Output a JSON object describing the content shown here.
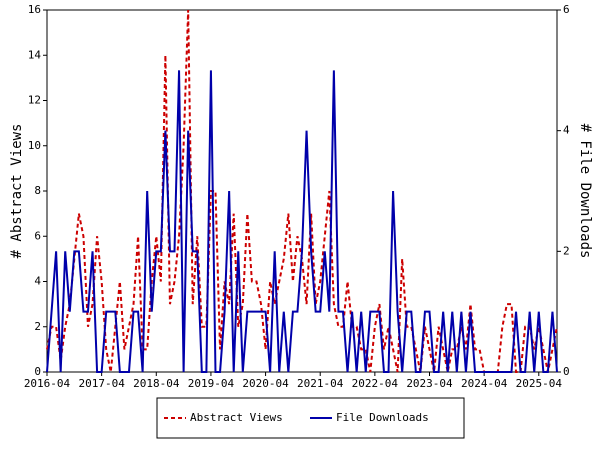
{
  "chart_data": {
    "type": "line",
    "x": [
      "2016-04",
      "2016-05",
      "2016-06",
      "2016-07",
      "2016-08",
      "2016-09",
      "2016-10",
      "2016-11",
      "2016-12",
      "2017-01",
      "2017-02",
      "2017-03",
      "2017-04",
      "2017-05",
      "2017-06",
      "2017-07",
      "2017-08",
      "2017-09",
      "2017-10",
      "2017-11",
      "2017-12",
      "2018-01",
      "2018-02",
      "2018-03",
      "2018-04",
      "2018-05",
      "2018-06",
      "2018-07",
      "2018-08",
      "2018-09",
      "2018-10",
      "2018-11",
      "2018-12",
      "2019-01",
      "2019-02",
      "2019-03",
      "2019-04",
      "2019-05",
      "2019-06",
      "2019-07",
      "2019-08",
      "2019-09",
      "2019-10",
      "2019-11",
      "2019-12",
      "2020-01",
      "2020-02",
      "2020-03",
      "2020-04",
      "2020-05",
      "2020-06",
      "2020-07",
      "2020-08",
      "2020-09",
      "2020-10",
      "2020-11",
      "2020-12",
      "2021-01",
      "2021-02",
      "2021-03",
      "2021-04",
      "2021-05",
      "2021-06",
      "2021-07",
      "2021-08",
      "2021-09",
      "2021-10",
      "2021-11",
      "2021-12",
      "2022-01",
      "2022-02",
      "2022-03",
      "2022-04",
      "2022-05",
      "2022-06",
      "2022-07",
      "2022-08",
      "2022-09",
      "2022-10",
      "2022-11",
      "2022-12",
      "2023-01",
      "2023-02",
      "2023-03",
      "2023-04",
      "2023-05",
      "2023-06",
      "2023-07",
      "2023-08",
      "2023-09",
      "2023-10",
      "2023-11",
      "2023-12",
      "2024-01",
      "2024-02",
      "2024-03",
      "2024-04",
      "2024-05",
      "2024-06",
      "2024-07",
      "2024-08",
      "2024-09",
      "2024-10",
      "2024-11",
      "2024-12",
      "2025-01",
      "2025-02",
      "2025-03",
      "2025-04",
      "2025-05",
      "2025-06",
      "2025-07",
      "2025-08"
    ],
    "xlim": [
      "2016-04",
      "2025-08"
    ],
    "xticks": [
      "2016-04",
      "2017-04",
      "2018-04",
      "2019-04",
      "2020-04",
      "2021-04",
      "2022-04",
      "2023-04",
      "2024-04",
      "2025-04"
    ],
    "ylabel": "# Abstract Views",
    "y2label": "# File Downloads",
    "ylim": [
      0,
      16
    ],
    "yticks": [
      0,
      2,
      4,
      6,
      8,
      10,
      12,
      14,
      16
    ],
    "y2lim": [
      0,
      6
    ],
    "y2ticks": [
      0,
      2,
      4,
      6
    ],
    "legend": "bottom",
    "series": [
      {
        "name": "Abstract Views",
        "color": "#cc0000",
        "dash": true,
        "values": [
          1,
          2,
          2,
          0.5,
          2,
          3,
          5,
          7,
          6,
          2,
          3,
          6,
          4,
          1,
          0,
          2,
          4,
          1,
          2,
          3,
          6,
          1,
          1,
          4,
          6,
          4,
          14,
          3,
          4,
          6,
          10,
          16,
          3,
          6,
          2,
          2,
          8,
          8,
          1,
          4,
          3,
          7,
          2,
          3,
          7,
          4,
          4,
          3,
          1,
          4,
          3,
          4,
          5,
          7,
          4,
          6,
          5,
          3,
          7,
          3,
          4,
          6,
          8,
          3,
          2,
          2,
          4,
          2,
          2,
          1,
          1,
          0,
          2,
          3,
          1,
          2,
          1,
          0,
          5,
          2,
          2,
          1,
          0,
          2,
          1,
          0,
          2,
          1,
          0,
          1,
          1,
          2,
          1,
          3,
          1,
          1,
          0,
          0,
          0,
          0,
          2,
          3,
          3,
          0,
          0,
          2,
          2,
          1,
          2,
          1,
          0,
          1,
          2
        ]
      },
      {
        "name": "File Downloads",
        "color": "#0000aa",
        "axis": "y2",
        "values": [
          0,
          1,
          2,
          0,
          2,
          1,
          2,
          2,
          1,
          1,
          2,
          0,
          0,
          1,
          1,
          1,
          0,
          0,
          0,
          1,
          1,
          0,
          3,
          1,
          2,
          2,
          4,
          2,
          2,
          5,
          0,
          4,
          2,
          2,
          0,
          0,
          5,
          0,
          0,
          1,
          3,
          0,
          2,
          0,
          1,
          1,
          1,
          1,
          1,
          0,
          2,
          0,
          1,
          0,
          1,
          1,
          2,
          4,
          2,
          1,
          1,
          2,
          1,
          5,
          1,
          1,
          0,
          1,
          0,
          1,
          0,
          1,
          1,
          1,
          0,
          0,
          3,
          1,
          0,
          1,
          1,
          0,
          0,
          1,
          1,
          0,
          0,
          1,
          0,
          1,
          0,
          1,
          0,
          1,
          0,
          0,
          0,
          0,
          0,
          0,
          0,
          0,
          0,
          1,
          0,
          0,
          1,
          0,
          1,
          0,
          0,
          1,
          0
        ]
      }
    ]
  }
}
